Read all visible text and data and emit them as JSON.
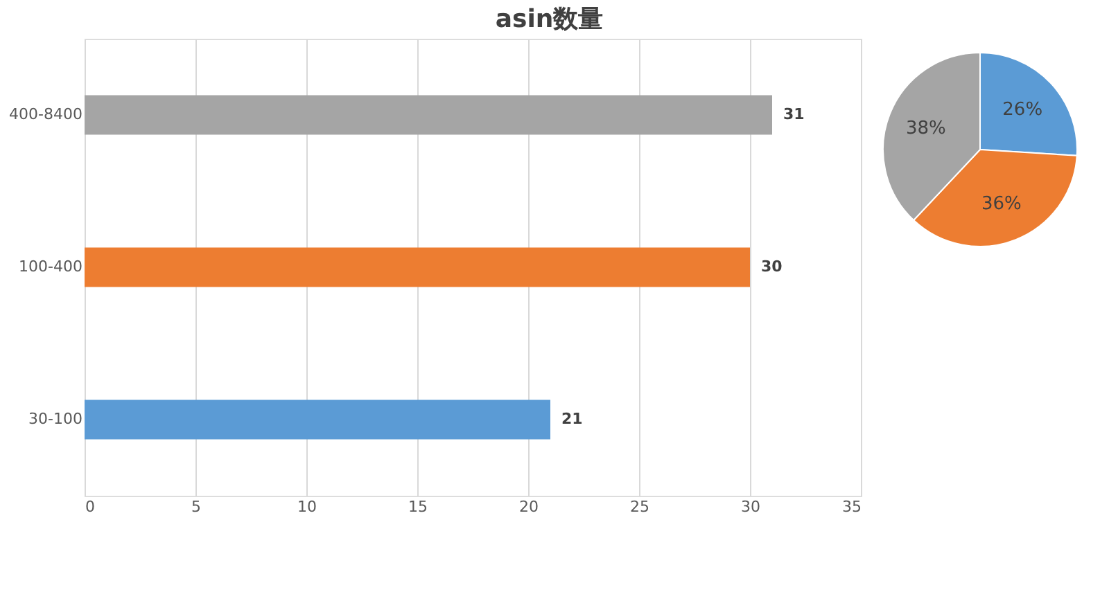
{
  "chart_data": [
    {
      "type": "bar",
      "title": "asin数量",
      "orientation": "horizontal",
      "categories": [
        "400-8400",
        "100-400",
        "30-100"
      ],
      "values": [
        31,
        30,
        21
      ],
      "colors": [
        "#a5a5a5",
        "#ed7d31",
        "#5b9bd5"
      ],
      "xlim": [
        0,
        35
      ],
      "xticks": [
        0,
        5,
        10,
        15,
        20,
        25,
        30,
        35
      ],
      "grid": "x",
      "data_labels": true
    },
    {
      "type": "pie",
      "categories": [
        null,
        null,
        null
      ],
      "values": [
        26,
        36,
        38
      ],
      "colors": [
        "#5b9bd5",
        "#ed7d31",
        "#a5a5a5"
      ],
      "value_labels": [
        "26%",
        "36%",
        "38%"
      ]
    }
  ]
}
